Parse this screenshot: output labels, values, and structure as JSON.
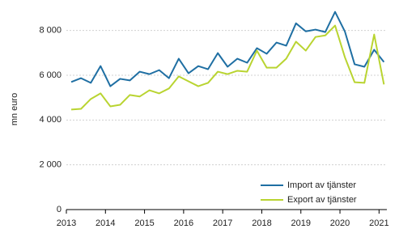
{
  "chart_data": {
    "type": "line",
    "y_label": "mn euro",
    "x": [
      2013.125,
      2013.375,
      2013.625,
      2013.875,
      2014.125,
      2014.375,
      2014.625,
      2014.875,
      2015.125,
      2015.375,
      2015.625,
      2015.875,
      2016.125,
      2016.375,
      2016.625,
      2016.875,
      2017.125,
      2017.375,
      2017.625,
      2017.875,
      2018.125,
      2018.375,
      2018.625,
      2018.875,
      2019.125,
      2019.375,
      2019.625,
      2019.875,
      2020.125,
      2020.375,
      2020.625,
      2020.875,
      2021.125
    ],
    "series": [
      {
        "name": "Import av tjänster",
        "color": "#1f6fa3",
        "values": [
          5700,
          5870,
          5660,
          6410,
          5510,
          5840,
          5770,
          6160,
          6050,
          6230,
          5870,
          6740,
          6090,
          6410,
          6270,
          6990,
          6380,
          6740,
          6560,
          7210,
          6960,
          7460,
          7320,
          8320,
          7960,
          8040,
          7930,
          8830,
          7960,
          6490,
          6380,
          7140,
          6590
        ]
      },
      {
        "name": "Export av tjänster",
        "color": "#b9d431",
        "values": [
          4470,
          4500,
          4940,
          5190,
          4610,
          4680,
          5120,
          5050,
          5330,
          5190,
          5410,
          5950,
          5730,
          5510,
          5660,
          6160,
          6050,
          6200,
          6160,
          7100,
          6340,
          6340,
          6740,
          7500,
          7100,
          7710,
          7780,
          8220,
          6810,
          5690,
          5660,
          7820,
          5590
        ]
      }
    ],
    "xlim": [
      2013,
      2021.2
    ],
    "xticks": [
      2013,
      2014,
      2015,
      2016,
      2017,
      2018,
      2019,
      2020,
      2021
    ],
    "ylim": [
      0,
      9000
    ],
    "yticks": [
      0,
      {
        "value": 2000,
        "label": "2 000"
      },
      {
        "value": 4000,
        "label": "4 000"
      },
      {
        "value": 6000,
        "label": "6 000"
      },
      {
        "value": 8000,
        "label": "8 000"
      }
    ],
    "grid": true,
    "legend": "lower right"
  }
}
